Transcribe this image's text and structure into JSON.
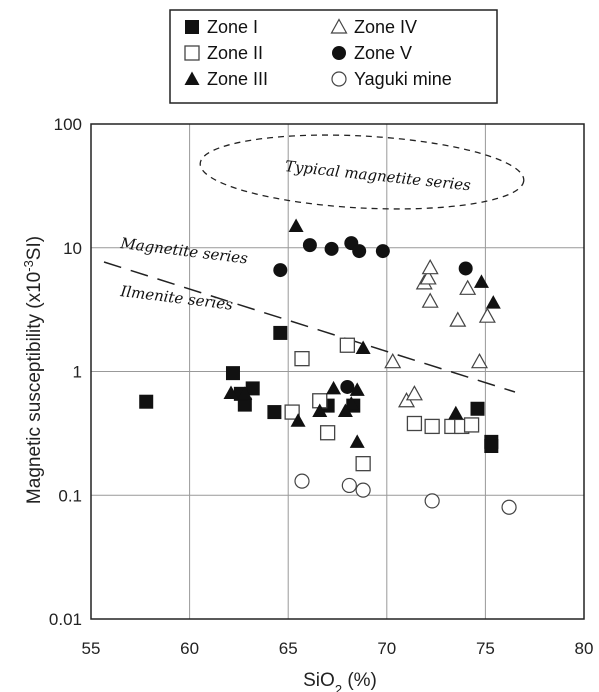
{
  "chart_data": {
    "type": "scatter",
    "title": "",
    "xlabel": "SiO2 (%)",
    "ylabel": "Magnetic susceptibility (x10-3SI)",
    "xlabel_parts": {
      "main": "SiO",
      "sub": "2",
      "tail": " (%)"
    },
    "ylabel_parts": {
      "main": "Magnetic susceptibility (x10",
      "sup": "-3",
      "tail": "SI)"
    },
    "xlim": [
      55,
      80
    ],
    "ylim": [
      0.01,
      100
    ],
    "yscale": "log",
    "grid": true,
    "legend_position": "top-center",
    "x_ticks": [
      "55",
      "60",
      "65",
      "70",
      "75",
      "80"
    ],
    "x_tick_values": [
      55,
      60,
      65,
      70,
      75,
      80
    ],
    "y_ticks": [
      "0.01",
      "0.1",
      "1",
      "10",
      "100"
    ],
    "y_tick_values": [
      0.01,
      0.1,
      1,
      10,
      100
    ],
    "series": [
      {
        "name": "Zone I",
        "marker": "filled-square",
        "points": [
          [
            57.8,
            0.57
          ],
          [
            62.2,
            0.97
          ],
          [
            62.8,
            0.54
          ],
          [
            63.2,
            0.73
          ],
          [
            62.6,
            0.66
          ],
          [
            64.3,
            0.47
          ],
          [
            64.6,
            2.05
          ],
          [
            67.0,
            0.53
          ],
          [
            68.3,
            0.53
          ],
          [
            74.6,
            0.5
          ],
          [
            75.3,
            0.27
          ],
          [
            75.3,
            0.25
          ]
        ]
      },
      {
        "name": "Zone II",
        "marker": "open-square",
        "points": [
          [
            65.2,
            0.47
          ],
          [
            65.7,
            1.27
          ],
          [
            66.6,
            0.58
          ],
          [
            67.0,
            0.32
          ],
          [
            68.0,
            1.63
          ],
          [
            68.8,
            0.18
          ],
          [
            71.4,
            0.38
          ],
          [
            72.3,
            0.36
          ],
          [
            73.3,
            0.36
          ],
          [
            73.8,
            0.36
          ],
          [
            74.3,
            0.37
          ]
        ]
      },
      {
        "name": "Zone III",
        "marker": "filled-triangle",
        "points": [
          [
            62.1,
            0.67
          ],
          [
            62.8,
            0.66
          ],
          [
            65.4,
            15.0
          ],
          [
            65.5,
            0.4
          ],
          [
            66.6,
            0.48
          ],
          [
            67.3,
            0.73
          ],
          [
            67.9,
            0.48
          ],
          [
            68.2,
            0.55
          ],
          [
            68.5,
            0.71
          ],
          [
            68.5,
            0.27
          ],
          [
            68.8,
            1.55
          ],
          [
            73.5,
            0.46
          ],
          [
            74.8,
            5.3
          ],
          [
            75.4,
            3.6
          ]
        ]
      },
      {
        "name": "Zone IV",
        "marker": "open-triangle",
        "points": [
          [
            70.3,
            1.2
          ],
          [
            71.0,
            0.58
          ],
          [
            71.4,
            0.66
          ],
          [
            71.9,
            5.2
          ],
          [
            72.1,
            5.7
          ],
          [
            72.2,
            6.9
          ],
          [
            72.2,
            3.7
          ],
          [
            73.6,
            2.6
          ],
          [
            74.1,
            4.7
          ],
          [
            74.7,
            1.2
          ],
          [
            75.1,
            2.8
          ]
        ]
      },
      {
        "name": "Zone V",
        "marker": "filled-circle",
        "points": [
          [
            64.6,
            6.6
          ],
          [
            66.1,
            10.5
          ],
          [
            67.2,
            9.8
          ],
          [
            68.2,
            10.9
          ],
          [
            68.6,
            9.4
          ],
          [
            69.8,
            9.4
          ],
          [
            68.0,
            0.75
          ],
          [
            74.0,
            6.8
          ]
        ]
      },
      {
        "name": "Yaguki mine",
        "marker": "open-circle",
        "points": [
          [
            65.7,
            0.13
          ],
          [
            68.1,
            0.12
          ],
          [
            68.8,
            0.11
          ],
          [
            72.3,
            0.09
          ],
          [
            76.2,
            0.08
          ]
        ]
      }
    ],
    "annotations": [
      "Typical magnetite series",
      "Magnetite series",
      "Ilmenite series"
    ]
  }
}
